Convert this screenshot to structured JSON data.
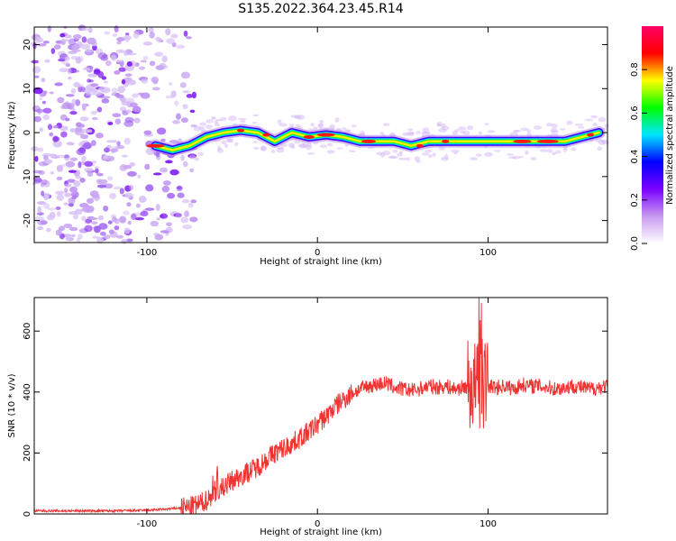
{
  "figure_title": "S135.2022.364.23.45.R14",
  "chart_data": [
    {
      "type": "heatmap",
      "title": "",
      "xlabel": "Height of straight line (km)",
      "ylabel": "Frequency (Hz)",
      "xlim": [
        -166,
        170
      ],
      "ylim": [
        -25,
        24
      ],
      "xticks": [
        -100,
        0,
        100
      ],
      "yticks": [
        -20,
        -10,
        0,
        10,
        20
      ],
      "colorbar": {
        "label": "Normalized spectral amplitude",
        "range": [
          0,
          1
        ],
        "ticks": [
          "0.0",
          "0.2",
          "0.4",
          "0.6",
          "0.8"
        ],
        "colors": [
          "#ffffff",
          "#c89af0",
          "#7a00ff",
          "#0000ff",
          "#00e5ff",
          "#00ff00",
          "#ffff00",
          "#ff0000",
          "#ff0066"
        ]
      },
      "ridge": {
        "description_free_values": true,
        "x": [
          -95,
          -85,
          -75,
          -65,
          -55,
          -45,
          -35,
          -25,
          -15,
          -5,
          5,
          15,
          25,
          35,
          45,
          55,
          65,
          75,
          85,
          95,
          105,
          115,
          125,
          135,
          145,
          155,
          165
        ],
        "y": [
          -3,
          -4,
          -3,
          -1,
          0,
          0.5,
          0,
          -2,
          0,
          -1,
          -0.5,
          -1,
          -2,
          -2,
          -2,
          -3,
          -2,
          -2,
          -2,
          -2,
          -2,
          -2,
          -2,
          -2,
          -2,
          -1,
          0
        ]
      }
    },
    {
      "type": "line",
      "title": "",
      "xlabel": "Height of straight line (km)",
      "ylabel": "SNR (10 * v/v)",
      "xlim": [
        -166,
        170
      ],
      "ylim": [
        0,
        710
      ],
      "xticks": [
        -100,
        0,
        100
      ],
      "yticks": [
        0,
        200,
        400,
        600
      ],
      "color": "#ee3333",
      "series": [
        {
          "x": [
            -166,
            -140,
            -120,
            -100,
            -90,
            -80,
            -75,
            -70,
            -65,
            -60,
            -55,
            -50,
            -45,
            -40,
            -35,
            -30,
            -25,
            -20,
            -15,
            -10,
            -5,
            0,
            5,
            10,
            15,
            20,
            25,
            30,
            35,
            40,
            45,
            50,
            55,
            60,
            65,
            70,
            75,
            80,
            85,
            90,
            95,
            100,
            105,
            110,
            115,
            120,
            125,
            130,
            135,
            140,
            145,
            150,
            155,
            160,
            165,
            170
          ],
          "y": [
            10,
            10,
            10,
            12,
            15,
            20,
            22,
            30,
            45,
            70,
            90,
            110,
            125,
            140,
            155,
            180,
            200,
            215,
            230,
            250,
            270,
            295,
            320,
            350,
            375,
            395,
            410,
            420,
            425,
            430,
            415,
            410,
            405,
            410,
            420,
            415,
            420,
            410,
            415,
            420,
            415,
            420,
            415,
            420,
            410,
            425,
            420,
            420,
            415,
            410,
            415,
            420,
            415,
            410,
            415,
            420
          ]
        }
      ]
    }
  ]
}
